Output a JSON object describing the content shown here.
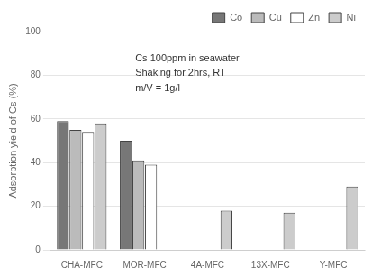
{
  "chart_data": {
    "type": "bar",
    "categories": [
      "CHA-MFC",
      "MOR-MFC",
      "4A-MFC",
      "13X-MFC",
      "Y-MFC"
    ],
    "series": [
      {
        "name": "Co",
        "color": "#777777",
        "values": [
          59,
          50,
          0,
          0,
          0
        ]
      },
      {
        "name": "Cu",
        "color": "#bbbbbb",
        "values": [
          55,
          41,
          0,
          0,
          0
        ]
      },
      {
        "name": "Zn",
        "color": "#ffffff",
        "values": [
          54,
          39,
          0,
          0,
          0
        ]
      },
      {
        "name": "Ni",
        "color": "#cccccc",
        "values": [
          58,
          0,
          18,
          17,
          29
        ]
      }
    ],
    "ylabel": "Adsorption yield of Cs (%)",
    "ylim": [
      0,
      100
    ],
    "yticks": [
      0,
      20,
      40,
      60,
      80,
      100
    ],
    "annotation": "Cs 100ppm in seawater\nShaking for 2hrs, RT\nm/V = 1g/l",
    "grid": true,
    "legend": "upper right"
  }
}
